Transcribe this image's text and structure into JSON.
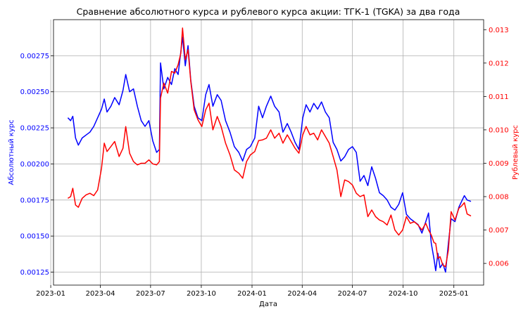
{
  "chart_data": {
    "type": "line",
    "title": "Сравнение абсолютного курса и рублевого курса акции: ТГК-1 (TGKA) за два года",
    "xlabel": "Дата",
    "ylabel_left": "Абсолютный курс",
    "ylabel_right": "Рублевый курс",
    "grid": true,
    "x_ticks": [
      "2023-01",
      "2023-04",
      "2023-07",
      "2023-10",
      "2024-01",
      "2024-04",
      "2024-07",
      "2024-10",
      "2025-01"
    ],
    "x_range": [
      "2023-01-06",
      "2025-02-24"
    ],
    "y_left": {
      "range": [
        0.00116,
        0.003
      ],
      "ticks": [
        "0.00125",
        "0.00150",
        "0.00175",
        "0.00200",
        "0.00225",
        "0.00250",
        "0.00275"
      ]
    },
    "y_right": {
      "range": [
        0.00535,
        0.0133
      ],
      "ticks": [
        "0.006",
        "0.007",
        "0.008",
        "0.009",
        "0.010",
        "0.011",
        "0.012",
        "0.013"
      ]
    },
    "series": [
      {
        "axis": "left",
        "color": "#0000ff",
        "points": [
          [
            "2023-02-01",
            0.00232
          ],
          [
            "2023-02-06",
            0.0023
          ],
          [
            "2023-02-10",
            0.00233
          ],
          [
            "2023-02-15",
            0.00218
          ],
          [
            "2023-02-20",
            0.00213
          ],
          [
            "2023-02-27",
            0.00218
          ],
          [
            "2023-03-06",
            0.0022
          ],
          [
            "2023-03-13",
            0.00222
          ],
          [
            "2023-03-20",
            0.00226
          ],
          [
            "2023-03-27",
            0.00232
          ],
          [
            "2023-04-03",
            0.00238
          ],
          [
            "2023-04-08",
            0.00245
          ],
          [
            "2023-04-13",
            0.00236
          ],
          [
            "2023-04-20",
            0.0024
          ],
          [
            "2023-04-27",
            0.00246
          ],
          [
            "2023-05-05",
            0.00241
          ],
          [
            "2023-05-12",
            0.00251
          ],
          [
            "2023-05-17",
            0.00262
          ],
          [
            "2023-05-24",
            0.0025
          ],
          [
            "2023-05-31",
            0.00252
          ],
          [
            "2023-06-07",
            0.0024
          ],
          [
            "2023-06-14",
            0.0023
          ],
          [
            "2023-06-21",
            0.00226
          ],
          [
            "2023-06-28",
            0.0023
          ],
          [
            "2023-07-05",
            0.00216
          ],
          [
            "2023-07-12",
            0.00208
          ],
          [
            "2023-07-17",
            0.0021
          ],
          [
            "2023-07-19",
            0.0027
          ],
          [
            "2023-07-25",
            0.00252
          ],
          [
            "2023-08-01",
            0.0026
          ],
          [
            "2023-08-08",
            0.00255
          ],
          [
            "2023-08-14",
            0.00266
          ],
          [
            "2023-08-20",
            0.00262
          ],
          [
            "2023-08-25",
            0.00278
          ],
          [
            "2023-08-28",
            0.00288
          ],
          [
            "2023-09-02",
            0.00268
          ],
          [
            "2023-09-07",
            0.00282
          ],
          [
            "2023-09-12",
            0.00258
          ],
          [
            "2023-09-18",
            0.0024
          ],
          [
            "2023-09-25",
            0.00232
          ],
          [
            "2023-10-02",
            0.0023
          ],
          [
            "2023-10-09",
            0.00248
          ],
          [
            "2023-10-15",
            0.00255
          ],
          [
            "2023-10-22",
            0.0024
          ],
          [
            "2023-10-30",
            0.00248
          ],
          [
            "2023-11-06",
            0.00244
          ],
          [
            "2023-11-14",
            0.0023
          ],
          [
            "2023-11-22",
            0.00222
          ],
          [
            "2023-11-30",
            0.00212
          ],
          [
            "2023-12-08",
            0.00208
          ],
          [
            "2023-12-15",
            0.00202
          ],
          [
            "2023-12-22",
            0.0021
          ],
          [
            "2023-12-29",
            0.00212
          ],
          [
            "2024-01-06",
            0.00218
          ],
          [
            "2024-01-13",
            0.0024
          ],
          [
            "2024-01-20",
            0.00232
          ],
          [
            "2024-01-27",
            0.0024
          ],
          [
            "2024-02-04",
            0.00247
          ],
          [
            "2024-02-11",
            0.0024
          ],
          [
            "2024-02-19",
            0.00236
          ],
          [
            "2024-02-26",
            0.00222
          ],
          [
            "2024-03-05",
            0.00228
          ],
          [
            "2024-03-12",
            0.00222
          ],
          [
            "2024-03-19",
            0.00215
          ],
          [
            "2024-03-26",
            0.0021
          ],
          [
            "2024-04-02",
            0.00232
          ],
          [
            "2024-04-08",
            0.00241
          ],
          [
            "2024-04-15",
            0.00236
          ],
          [
            "2024-04-22",
            0.00242
          ],
          [
            "2024-04-29",
            0.00238
          ],
          [
            "2024-05-06",
            0.00243
          ],
          [
            "2024-05-13",
            0.00236
          ],
          [
            "2024-05-20",
            0.00232
          ],
          [
            "2024-05-27",
            0.00215
          ],
          [
            "2024-06-03",
            0.0021
          ],
          [
            "2024-06-10",
            0.00202
          ],
          [
            "2024-06-17",
            0.00205
          ],
          [
            "2024-06-24",
            0.0021
          ],
          [
            "2024-07-01",
            0.00212
          ],
          [
            "2024-07-08",
            0.00208
          ],
          [
            "2024-07-15",
            0.00188
          ],
          [
            "2024-07-22",
            0.00192
          ],
          [
            "2024-07-29",
            0.00185
          ],
          [
            "2024-08-05",
            0.00198
          ],
          [
            "2024-08-12",
            0.0019
          ],
          [
            "2024-08-19",
            0.0018
          ],
          [
            "2024-08-26",
            0.00178
          ],
          [
            "2024-09-02",
            0.00175
          ],
          [
            "2024-09-09",
            0.0017
          ],
          [
            "2024-09-16",
            0.00168
          ],
          [
            "2024-09-23",
            0.00172
          ],
          [
            "2024-09-30",
            0.0018
          ],
          [
            "2024-10-07",
            0.00165
          ],
          [
            "2024-10-14",
            0.00162
          ],
          [
            "2024-10-21",
            0.0016
          ],
          [
            "2024-10-28",
            0.00158
          ],
          [
            "2024-11-04",
            0.00152
          ],
          [
            "2024-11-11",
            0.0016
          ],
          [
            "2024-11-16",
            0.00166
          ],
          [
            "2024-11-21",
            0.00145
          ],
          [
            "2024-11-26",
            0.00134
          ],
          [
            "2024-11-29",
            0.00126
          ],
          [
            "2024-12-03",
            0.00138
          ],
          [
            "2024-12-07",
            0.00128
          ],
          [
            "2024-12-12",
            0.00131
          ],
          [
            "2024-12-17",
            0.00125
          ],
          [
            "2024-12-22",
            0.00145
          ],
          [
            "2024-12-27",
            0.00162
          ],
          [
            "2025-01-03",
            0.0016
          ],
          [
            "2025-01-10",
            0.0017
          ],
          [
            "2025-01-15",
            0.00174
          ],
          [
            "2025-01-20",
            0.00178
          ],
          [
            "2025-01-25",
            0.00175
          ],
          [
            "2025-02-01",
            0.00174
          ]
        ]
      },
      {
        "axis": "right",
        "color": "#ff0000",
        "points": [
          [
            "2023-02-01",
            0.00795
          ],
          [
            "2023-02-06",
            0.008
          ],
          [
            "2023-02-10",
            0.00825
          ],
          [
            "2023-02-15",
            0.00775
          ],
          [
            "2023-02-20",
            0.00768
          ],
          [
            "2023-02-27",
            0.00795
          ],
          [
            "2023-03-06",
            0.00805
          ],
          [
            "2023-03-13",
            0.0081
          ],
          [
            "2023-03-20",
            0.00803
          ],
          [
            "2023-03-27",
            0.0082
          ],
          [
            "2023-04-03",
            0.00885
          ],
          [
            "2023-04-08",
            0.0096
          ],
          [
            "2023-04-13",
            0.00935
          ],
          [
            "2023-04-20",
            0.0095
          ],
          [
            "2023-04-27",
            0.00965
          ],
          [
            "2023-05-05",
            0.0092
          ],
          [
            "2023-05-12",
            0.00945
          ],
          [
            "2023-05-17",
            0.0101
          ],
          [
            "2023-05-24",
            0.0093
          ],
          [
            "2023-05-31",
            0.00905
          ],
          [
            "2023-06-07",
            0.00895
          ],
          [
            "2023-06-14",
            0.009
          ],
          [
            "2023-06-21",
            0.009
          ],
          [
            "2023-06-28",
            0.0091
          ],
          [
            "2023-07-05",
            0.00898
          ],
          [
            "2023-07-12",
            0.00895
          ],
          [
            "2023-07-17",
            0.00905
          ],
          [
            "2023-07-19",
            0.01095
          ],
          [
            "2023-07-25",
            0.0114
          ],
          [
            "2023-08-01",
            0.0111
          ],
          [
            "2023-08-08",
            0.01175
          ],
          [
            "2023-08-14",
            0.0117
          ],
          [
            "2023-08-20",
            0.01195
          ],
          [
            "2023-08-25",
            0.0123
          ],
          [
            "2023-08-28",
            0.01305
          ],
          [
            "2023-09-02",
            0.0121
          ],
          [
            "2023-09-07",
            0.0124
          ],
          [
            "2023-09-12",
            0.01145
          ],
          [
            "2023-09-18",
            0.0106
          ],
          [
            "2023-09-25",
            0.0103
          ],
          [
            "2023-10-02",
            0.0101
          ],
          [
            "2023-10-09",
            0.0106
          ],
          [
            "2023-10-15",
            0.0108
          ],
          [
            "2023-10-22",
            0.01
          ],
          [
            "2023-10-30",
            0.0104
          ],
          [
            "2023-11-06",
            0.0101
          ],
          [
            "2023-11-14",
            0.0096
          ],
          [
            "2023-11-22",
            0.00925
          ],
          [
            "2023-11-30",
            0.0088
          ],
          [
            "2023-12-08",
            0.0087
          ],
          [
            "2023-12-15",
            0.00855
          ],
          [
            "2023-12-22",
            0.00905
          ],
          [
            "2023-12-29",
            0.00925
          ],
          [
            "2024-01-06",
            0.00935
          ],
          [
            "2024-01-13",
            0.00968
          ],
          [
            "2024-01-20",
            0.0097
          ],
          [
            "2024-01-27",
            0.00975
          ],
          [
            "2024-02-04",
            0.01
          ],
          [
            "2024-02-11",
            0.00975
          ],
          [
            "2024-02-19",
            0.0099
          ],
          [
            "2024-02-26",
            0.0096
          ],
          [
            "2024-03-05",
            0.00985
          ],
          [
            "2024-03-12",
            0.00965
          ],
          [
            "2024-03-19",
            0.00945
          ],
          [
            "2024-03-26",
            0.0093
          ],
          [
            "2024-04-02",
            0.00985
          ],
          [
            "2024-04-08",
            0.0101
          ],
          [
            "2024-04-15",
            0.00985
          ],
          [
            "2024-04-22",
            0.0099
          ],
          [
            "2024-04-29",
            0.0097
          ],
          [
            "2024-05-06",
            0.01
          ],
          [
            "2024-05-13",
            0.0098
          ],
          [
            "2024-05-20",
            0.0096
          ],
          [
            "2024-05-27",
            0.0092
          ],
          [
            "2024-06-03",
            0.0088
          ],
          [
            "2024-06-10",
            0.008
          ],
          [
            "2024-06-17",
            0.0085
          ],
          [
            "2024-06-24",
            0.00845
          ],
          [
            "2024-07-01",
            0.00835
          ],
          [
            "2024-07-08",
            0.0081
          ],
          [
            "2024-07-15",
            0.008
          ],
          [
            "2024-07-22",
            0.00805
          ],
          [
            "2024-07-29",
            0.0074
          ],
          [
            "2024-08-05",
            0.0076
          ],
          [
            "2024-08-12",
            0.0074
          ],
          [
            "2024-08-19",
            0.0073
          ],
          [
            "2024-08-26",
            0.00725
          ],
          [
            "2024-09-02",
            0.00715
          ],
          [
            "2024-09-09",
            0.00745
          ],
          [
            "2024-09-16",
            0.007
          ],
          [
            "2024-09-23",
            0.00685
          ],
          [
            "2024-09-30",
            0.007
          ],
          [
            "2024-10-07",
            0.0074
          ],
          [
            "2024-10-14",
            0.0072
          ],
          [
            "2024-10-21",
            0.00725
          ],
          [
            "2024-10-28",
            0.00715
          ],
          [
            "2024-11-04",
            0.007
          ],
          [
            "2024-11-11",
            0.0072
          ],
          [
            "2024-11-16",
            0.007
          ],
          [
            "2024-11-21",
            0.00685
          ],
          [
            "2024-11-26",
            0.00662
          ],
          [
            "2024-11-29",
            0.0066
          ],
          [
            "2024-12-03",
            0.00615
          ],
          [
            "2024-12-07",
            0.0062
          ],
          [
            "2024-12-12",
            0.00595
          ],
          [
            "2024-12-17",
            0.0059
          ],
          [
            "2024-12-22",
            0.0064
          ],
          [
            "2024-12-27",
            0.00755
          ],
          [
            "2025-01-03",
            0.0073
          ],
          [
            "2025-01-10",
            0.00765
          ],
          [
            "2025-01-15",
            0.00772
          ],
          [
            "2025-01-20",
            0.00782
          ],
          [
            "2025-01-25",
            0.00748
          ],
          [
            "2025-02-01",
            0.00742
          ]
        ]
      }
    ]
  }
}
